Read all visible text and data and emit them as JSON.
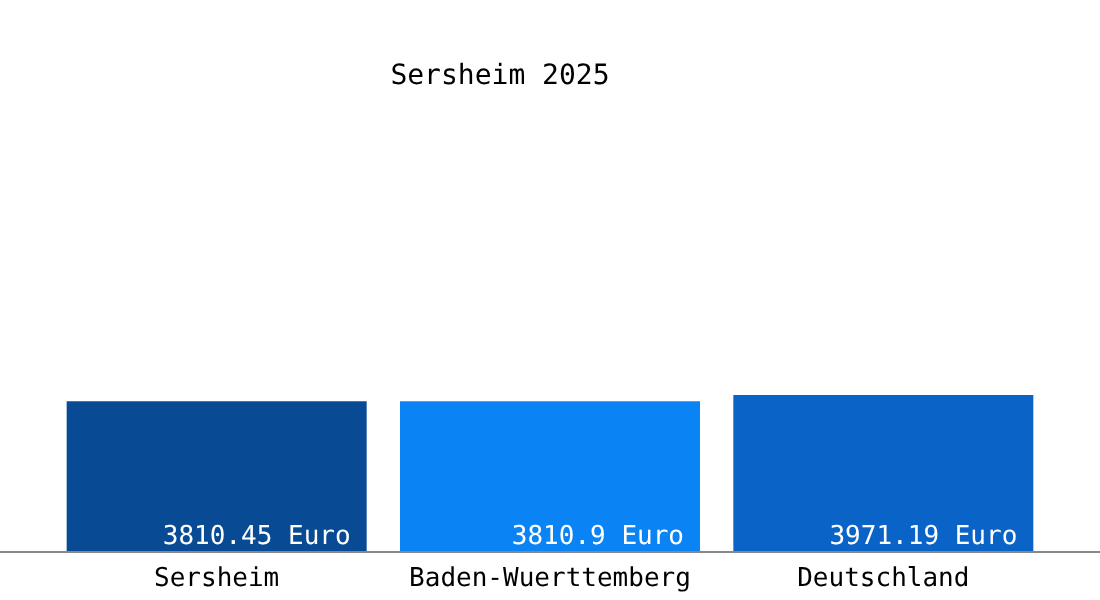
{
  "chart_data": {
    "type": "bar",
    "title": "Sersheim 2025",
    "categories": [
      "Sersheim",
      "Baden-Wuerttemberg",
      "Deutschland"
    ],
    "values": [
      3810.45,
      3810.9,
      3971.19
    ],
    "colors": [
      "#084a94",
      "#0a84f4",
      "#0a64c8"
    ],
    "value_labels": [
      "3810.45 Euro",
      "3810.9 Euro",
      "3971.19 Euro"
    ],
    "grid": false,
    "legend": false
  }
}
